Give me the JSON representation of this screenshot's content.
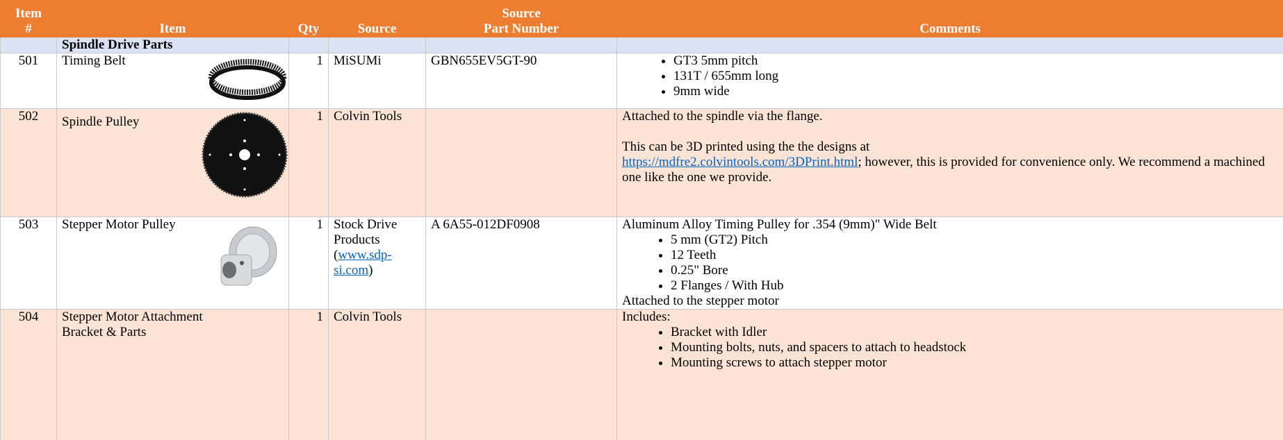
{
  "header": {
    "columns": [
      [
        "Item",
        "#"
      ],
      [
        "Item"
      ],
      [
        "Qty"
      ],
      [
        "Source"
      ],
      [
        "Source",
        "Part Number"
      ],
      [
        "Comments"
      ]
    ]
  },
  "section": "Spindle Drive Parts",
  "rows": [
    {
      "number": "501",
      "item": "Timing Belt",
      "qty": "1",
      "source": "MiSUMi",
      "part_number": "GBN655EV5GT-90",
      "comments": {
        "bullets": [
          "GT3 5mm pitch",
          "131T / 655mm long",
          "9mm wide"
        ]
      }
    },
    {
      "number": "502",
      "item": "Spindle Pulley",
      "qty": "1",
      "source": "Colvin Tools",
      "part_number": "",
      "comments": {
        "intro": "Attached to the spindle via the flange.",
        "text_before_link": "This can be 3D printed using the the designs at",
        "link": "https://mdfre2.colvintools.com/3DPrint.html",
        "text_after_link": "; however, this is provided for convenience only. We recommend a machined one like the one we provide."
      }
    },
    {
      "number": "503",
      "item": "Stepper Motor Pulley",
      "qty": "1",
      "source": "Stock Drive Products (",
      "source_link": "www.sdp-si.com",
      "source_end": ")",
      "part_number": "A 6A55-012DF0908",
      "comments": {
        "intro": "Aluminum Alloy Timing Pulley for .354 (9mm)\" Wide Belt",
        "bullets": [
          "5 mm (GT2) Pitch",
          "12 Teeth",
          "0.25\" Bore",
          "2 Flanges / With Hub"
        ],
        "outro": "Attached to the stepper motor"
      }
    },
    {
      "number": "504",
      "item": "Stepper Motor Attachment Bracket & Parts",
      "qty": "1",
      "source": "Colvin Tools",
      "part_number": "",
      "comments": {
        "intro": "Includes:",
        "bullets": [
          "Bracket with Idler",
          "Mounting bolts, nuts, and spacers to attach to headstock",
          "Mounting screws to attach stepper motor"
        ]
      }
    }
  ]
}
